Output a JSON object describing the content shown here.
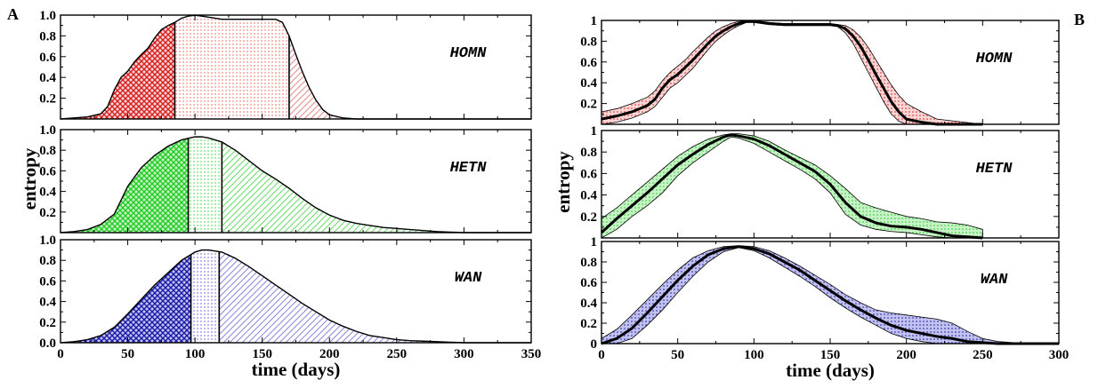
{
  "panels": {
    "left": "A",
    "right": "B"
  },
  "colors": {
    "HOMN": {
      "dark": "#d62020",
      "mid": "#e88c8c",
      "light": "#f1b5b5",
      "fill": "#f8d6d6"
    },
    "HETN": {
      "dark": "#22cc22",
      "mid": "#66dd66",
      "light": "#a6eba6",
      "fill": "#c8f2c8"
    },
    "WAN": {
      "dark": "#1a1aa8",
      "mid": "#8888dd",
      "light": "#a0a0e8",
      "fill": "#c2c2ee"
    }
  },
  "chart_data": [
    {
      "panel": "A",
      "type": "area",
      "xlabel": "time (days)",
      "ylabel": "entropy",
      "xlim": [
        0,
        350
      ],
      "xticks": [
        "0",
        "50",
        "100",
        "150",
        "200",
        "250",
        "300",
        "350"
      ],
      "yticks": [
        "1.0",
        "0.8",
        "0.6",
        "0.4",
        "0.2",
        "0.0"
      ],
      "ylim": [
        0,
        1
      ],
      "subplots": [
        {
          "name": "HOMN",
          "x": [
            0,
            10,
            20,
            30,
            35,
            40,
            45,
            50,
            55,
            60,
            65,
            70,
            75,
            80,
            85,
            90,
            95,
            100,
            110,
            120,
            130,
            140,
            150,
            160,
            165,
            170,
            175,
            180,
            185,
            190,
            195,
            200,
            210,
            220,
            230,
            240,
            350
          ],
          "values": [
            0.0,
            0.01,
            0.02,
            0.05,
            0.12,
            0.28,
            0.4,
            0.46,
            0.55,
            0.62,
            0.68,
            0.78,
            0.86,
            0.9,
            0.93,
            0.97,
            0.99,
            1.0,
            0.98,
            0.96,
            0.96,
            0.96,
            0.96,
            0.96,
            0.93,
            0.8,
            0.62,
            0.45,
            0.3,
            0.18,
            0.09,
            0.04,
            0.01,
            0.0,
            0.0,
            0.0,
            0.0
          ],
          "region_boundaries": [
            85,
            170
          ]
        },
        {
          "name": "HETN",
          "x": [
            0,
            10,
            20,
            30,
            40,
            50,
            60,
            70,
            80,
            90,
            100,
            105,
            110,
            120,
            130,
            140,
            150,
            160,
            170,
            180,
            190,
            200,
            210,
            220,
            230,
            240,
            250,
            260,
            270,
            280,
            290,
            300,
            350
          ],
          "values": [
            0.0,
            0.01,
            0.03,
            0.08,
            0.18,
            0.45,
            0.63,
            0.75,
            0.84,
            0.9,
            0.93,
            0.93,
            0.92,
            0.88,
            0.8,
            0.7,
            0.6,
            0.52,
            0.43,
            0.33,
            0.24,
            0.17,
            0.12,
            0.09,
            0.07,
            0.05,
            0.04,
            0.03,
            0.02,
            0.01,
            0.005,
            0.0,
            0.0
          ],
          "region_boundaries": [
            95,
            120
          ]
        },
        {
          "name": "WAN",
          "x": [
            0,
            10,
            20,
            30,
            40,
            50,
            60,
            70,
            80,
            90,
            100,
            105,
            110,
            120,
            130,
            140,
            150,
            160,
            170,
            180,
            190,
            200,
            210,
            220,
            230,
            240,
            250,
            260,
            270,
            280,
            290,
            300,
            310,
            350
          ],
          "values": [
            0.0,
            0.01,
            0.03,
            0.07,
            0.15,
            0.28,
            0.42,
            0.56,
            0.68,
            0.8,
            0.88,
            0.9,
            0.9,
            0.88,
            0.82,
            0.74,
            0.65,
            0.56,
            0.47,
            0.38,
            0.3,
            0.22,
            0.16,
            0.11,
            0.07,
            0.05,
            0.03,
            0.02,
            0.015,
            0.01,
            0.005,
            0.0,
            0.0,
            0.0
          ],
          "region_boundaries": [
            97,
            118
          ]
        }
      ]
    },
    {
      "panel": "B",
      "type": "line",
      "xlabel": "time (days)",
      "ylabel": "entropy",
      "xlim": [
        0,
        300
      ],
      "xticks": [
        "0",
        "50",
        "100",
        "150",
        "200",
        "250",
        "300"
      ],
      "yticks": [
        "1",
        "0.8",
        "0.6",
        "0.4",
        "0.2",
        "0"
      ],
      "ylim": [
        0,
        1
      ],
      "subplots": [
        {
          "name": "HOMN",
          "x": [
            0,
            10,
            20,
            30,
            35,
            40,
            45,
            50,
            55,
            60,
            65,
            70,
            75,
            80,
            85,
            90,
            95,
            100,
            110,
            120,
            130,
            140,
            150,
            155,
            160,
            165,
            170,
            175,
            180,
            185,
            190,
            195,
            200,
            210,
            220,
            250
          ],
          "mean": [
            0.05,
            0.08,
            0.12,
            0.18,
            0.24,
            0.35,
            0.43,
            0.48,
            0.55,
            0.62,
            0.7,
            0.78,
            0.85,
            0.9,
            0.94,
            0.97,
            0.99,
            0.99,
            0.97,
            0.96,
            0.96,
            0.96,
            0.96,
            0.95,
            0.92,
            0.85,
            0.75,
            0.62,
            0.48,
            0.35,
            0.22,
            0.12,
            0.05,
            0.02,
            0.0,
            0.0
          ],
          "upper": [
            0.12,
            0.15,
            0.2,
            0.26,
            0.32,
            0.42,
            0.5,
            0.56,
            0.62,
            0.7,
            0.77,
            0.84,
            0.9,
            0.94,
            0.97,
            0.99,
            1.0,
            1.0,
            0.98,
            0.97,
            0.97,
            0.97,
            0.97,
            0.96,
            0.95,
            0.91,
            0.84,
            0.74,
            0.62,
            0.5,
            0.38,
            0.28,
            0.2,
            0.12,
            0.05,
            0.0
          ],
          "lower": [
            0.0,
            0.02,
            0.06,
            0.12,
            0.17,
            0.26,
            0.35,
            0.4,
            0.47,
            0.54,
            0.63,
            0.72,
            0.8,
            0.86,
            0.91,
            0.95,
            0.98,
            0.98,
            0.96,
            0.95,
            0.95,
            0.95,
            0.95,
            0.94,
            0.88,
            0.78,
            0.64,
            0.5,
            0.36,
            0.22,
            0.1,
            0.03,
            0.0,
            0.0,
            0.0,
            0.0
          ]
        },
        {
          "name": "HETN",
          "x": [
            0,
            10,
            20,
            30,
            40,
            50,
            60,
            70,
            80,
            85,
            90,
            100,
            110,
            120,
            130,
            140,
            150,
            160,
            170,
            180,
            190,
            200,
            210,
            220,
            230,
            240,
            250
          ],
          "mean": [
            0.05,
            0.18,
            0.3,
            0.42,
            0.55,
            0.68,
            0.78,
            0.87,
            0.94,
            0.96,
            0.95,
            0.92,
            0.86,
            0.78,
            0.7,
            0.62,
            0.5,
            0.33,
            0.2,
            0.14,
            0.11,
            0.1,
            0.08,
            0.05,
            0.02,
            0.01,
            0.0
          ],
          "upper": [
            0.18,
            0.28,
            0.4,
            0.52,
            0.64,
            0.76,
            0.85,
            0.92,
            0.96,
            0.97,
            0.97,
            0.95,
            0.9,
            0.82,
            0.75,
            0.68,
            0.58,
            0.46,
            0.33,
            0.28,
            0.24,
            0.2,
            0.18,
            0.15,
            0.14,
            0.12,
            0.08
          ],
          "lower": [
            0.0,
            0.08,
            0.2,
            0.3,
            0.42,
            0.58,
            0.7,
            0.8,
            0.9,
            0.94,
            0.93,
            0.88,
            0.8,
            0.72,
            0.64,
            0.55,
            0.42,
            0.22,
            0.12,
            0.08,
            0.06,
            0.05,
            0.03,
            0.01,
            0.0,
            0.0,
            0.0
          ]
        },
        {
          "name": "WAN",
          "x": [
            0,
            10,
            20,
            30,
            40,
            50,
            60,
            70,
            80,
            90,
            100,
            110,
            120,
            130,
            140,
            150,
            160,
            170,
            180,
            190,
            200,
            210,
            220,
            230,
            240,
            250,
            260,
            270,
            280,
            290,
            300
          ],
          "mean": [
            0.0,
            0.05,
            0.15,
            0.3,
            0.46,
            0.62,
            0.76,
            0.87,
            0.93,
            0.95,
            0.93,
            0.88,
            0.8,
            0.72,
            0.62,
            0.52,
            0.42,
            0.33,
            0.25,
            0.18,
            0.13,
            0.1,
            0.07,
            0.05,
            0.02,
            0.01,
            0.0,
            0.0,
            0.0,
            0.0,
            0.0
          ],
          "upper": [
            0.05,
            0.14,
            0.28,
            0.43,
            0.58,
            0.72,
            0.84,
            0.91,
            0.95,
            0.96,
            0.95,
            0.91,
            0.84,
            0.76,
            0.67,
            0.58,
            0.48,
            0.4,
            0.33,
            0.3,
            0.28,
            0.26,
            0.24,
            0.2,
            0.12,
            0.05,
            0.02,
            0.01,
            0.01,
            0.0,
            0.0
          ],
          "lower": [
            0.0,
            0.0,
            0.05,
            0.18,
            0.33,
            0.5,
            0.66,
            0.8,
            0.9,
            0.94,
            0.91,
            0.84,
            0.75,
            0.66,
            0.56,
            0.45,
            0.35,
            0.26,
            0.18,
            0.1,
            0.05,
            0.02,
            0.0,
            0.0,
            0.0,
            0.0,
            0.0,
            0.0,
            0.0,
            0.0,
            0.0
          ]
        }
      ]
    }
  ]
}
